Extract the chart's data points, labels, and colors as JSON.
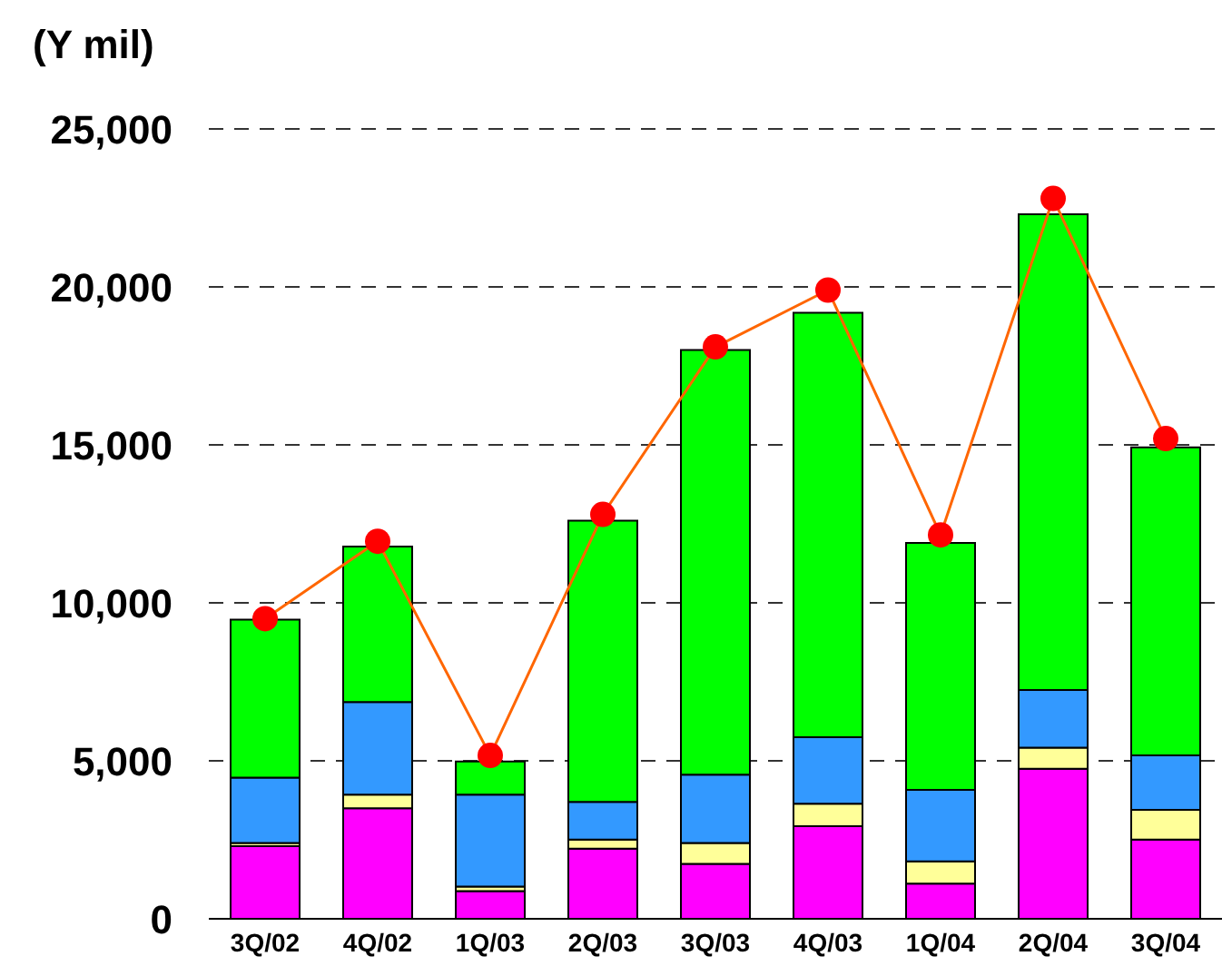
{
  "chart_data": {
    "type": "bar",
    "stacked": true,
    "ylabel": "(Y mil)",
    "categories": [
      "3Q/02",
      "4Q/02",
      "1Q/03",
      "2Q/03",
      "3Q/03",
      "4Q/03",
      "1Q/04",
      "2Q/04",
      "3Q/04"
    ],
    "series": [
      {
        "color": "#ff00ff",
        "values": [
          2300,
          3500,
          880,
          2220,
          1740,
          2930,
          1110,
          4750,
          2510
        ]
      },
      {
        "color": "#ffff99",
        "values": [
          100,
          430,
          140,
          290,
          660,
          710,
          710,
          670,
          940
        ]
      },
      {
        "color": "#3399ff",
        "values": [
          2070,
          2930,
          2910,
          1190,
          2160,
          2110,
          2260,
          1820,
          1720
        ]
      },
      {
        "color": "#00ff00",
        "values": [
          5000,
          4920,
          1050,
          8900,
          13440,
          13430,
          7820,
          15060,
          9750
        ]
      },
      {
        "type": "line",
        "color": "#ff6600",
        "values": [
          9500,
          11950,
          5170,
          12800,
          18100,
          19900,
          12150,
          22800,
          15200
        ]
      }
    ],
    "ylim": [
      0,
      25000
    ],
    "yticks": [
      0,
      {
        "value": 5000,
        "label": "5,000"
      },
      {
        "value": 10000,
        "label": "10,000"
      },
      {
        "value": 15000,
        "label": "15,000"
      },
      {
        "value": 20000,
        "label": "20,000"
      },
      {
        "value": 25000,
        "label": "25,000"
      }
    ],
    "grid": "y",
    "marker": "circle",
    "line_style": "solid"
  }
}
